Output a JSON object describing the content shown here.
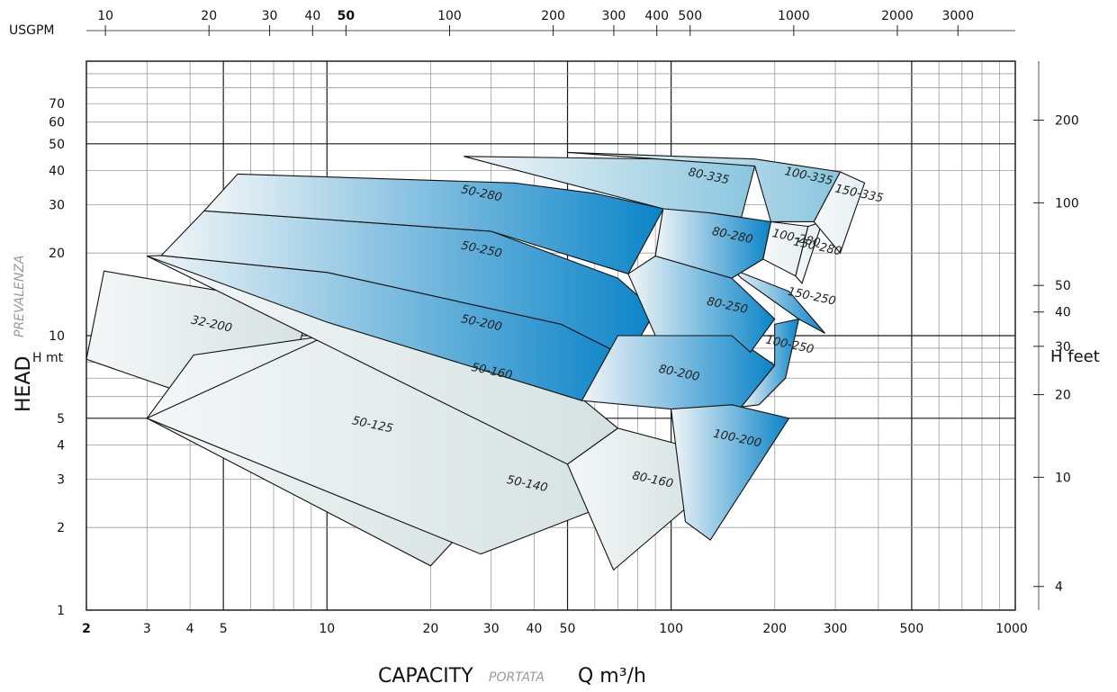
{
  "chart_data": {
    "type": "area",
    "x_scale": "log",
    "y_scale": "log",
    "xlabel": "CAPACITY",
    "xlabel_sub": "PORTATA",
    "xlabel_unit": "Q m³/h",
    "ylabel": "HEAD",
    "ylabel_sub": "PREVALENZA",
    "ylabel_unit": "H mt",
    "y2label": "H feet",
    "top_axis_label": "USGPM",
    "xlim": [
      2,
      1000
    ],
    "ylim": [
      1,
      100
    ],
    "x_ticks": [
      "2",
      "3",
      "4",
      "5",
      "10",
      "20",
      "30",
      "40",
      "50",
      "100",
      "200",
      "300",
      "500",
      "1000"
    ],
    "y_ticks": [
      "1",
      "2",
      "3",
      "4",
      "5",
      "10",
      "20",
      "30",
      "40",
      "50",
      "60",
      "70"
    ],
    "top_ticks": [
      "10",
      "20",
      "30",
      "40",
      "50",
      "100",
      "200",
      "300",
      "400",
      "500",
      "1000",
      "2000",
      "3000"
    ],
    "right_ticks": [
      "4",
      "10",
      "20",
      "30",
      "40",
      "50",
      "100",
      "200"
    ],
    "grid": true,
    "gradient_light": "#f4f7f7",
    "gradient_dark": "#0a84c8",
    "gradient_grey": "#d5e1e1",
    "regions": [
      {
        "label": "32-200",
        "label_x": 4.6,
        "label_y": 10.7,
        "shade": "grey",
        "poly": [
          [
            2.25,
            17.2
          ],
          [
            8.9,
            12.8
          ],
          [
            7.2,
            4.7
          ],
          [
            2,
            8.2
          ]
        ]
      },
      {
        "label": "50-125",
        "label_x": 13.5,
        "label_y": 4.6,
        "shade": "grey",
        "poly": [
          [
            3,
            5
          ],
          [
            4.1,
            8.5
          ],
          [
            10,
            10
          ],
          [
            35,
            3.1
          ],
          [
            20,
            1.45
          ],
          [
            3,
            5
          ]
        ]
      },
      {
        "label": "50-140",
        "label_x": 38,
        "label_y": 2.8,
        "shade": "grey",
        "poly": [
          [
            3,
            5
          ],
          [
            10,
            10
          ],
          [
            50,
            4.5
          ],
          [
            70,
            2.5
          ],
          [
            28,
            1.6
          ],
          [
            3,
            5
          ]
        ]
      },
      {
        "label": "50-160",
        "label_x": 30,
        "label_y": 7.2,
        "shade": "grey",
        "poly": [
          [
            3,
            19.5
          ],
          [
            10,
            12.4
          ],
          [
            50,
            6.5
          ],
          [
            70,
            4.6
          ],
          [
            50,
            3.4
          ],
          [
            3,
            19.5
          ]
        ]
      },
      {
        "label": "80-160",
        "label_x": 88,
        "label_y": 2.9,
        "shade": "grey",
        "poly": [
          [
            50,
            3.4
          ],
          [
            70,
            4.6
          ],
          [
            115,
            3.9
          ],
          [
            130,
            2.8
          ],
          [
            68,
            1.4
          ],
          [
            50,
            3.4
          ]
        ]
      },
      {
        "label": "50-200",
        "label_x": 28,
        "label_y": 10.8,
        "shade": "blue",
        "poly": [
          [
            3.3,
            19.6
          ],
          [
            10,
            17
          ],
          [
            48,
            11
          ],
          [
            75,
            8.3
          ],
          [
            55,
            5.8
          ],
          [
            10,
            11.2
          ],
          [
            3,
            19.5
          ]
        ]
      },
      {
        "label": "50-250",
        "label_x": 28,
        "label_y": 20,
        "shade": "blue",
        "poly": [
          [
            4.4,
            28.5
          ],
          [
            30,
            24
          ],
          [
            70,
            16.2
          ],
          [
            90,
            12.3
          ],
          [
            75,
            8.3
          ],
          [
            48,
            11
          ],
          [
            10,
            17
          ],
          [
            3.3,
            19.6
          ]
        ]
      },
      {
        "label": "50-280",
        "label_x": 28,
        "label_y": 32,
        "shade": "blue",
        "poly": [
          [
            5.5,
            38.8
          ],
          [
            35,
            36
          ],
          [
            60,
            33
          ],
          [
            95,
            29
          ],
          [
            75,
            16.8
          ],
          [
            30,
            24
          ],
          [
            4.4,
            28.5
          ]
        ]
      },
      {
        "label": "80-200",
        "label_x": 105,
        "label_y": 7.1,
        "shade": "blue",
        "poly": [
          [
            70,
            10
          ],
          [
            90,
            10
          ],
          [
            150,
            10
          ],
          [
            200,
            7.8
          ],
          [
            160,
            5.5
          ],
          [
            100,
            5.4
          ],
          [
            55,
            5.8
          ]
        ]
      },
      {
        "label": "80-250",
        "label_x": 145,
        "label_y": 12.5,
        "shade": "blue",
        "poly": [
          [
            90,
            19.5
          ],
          [
            150,
            16.2
          ],
          [
            200,
            11.5
          ],
          [
            170,
            8.7
          ],
          [
            150,
            10
          ],
          [
            90,
            10
          ],
          [
            75,
            16.8
          ]
        ]
      },
      {
        "label": "100-200",
        "label_x": 155,
        "label_y": 4.1,
        "shade": "blue",
        "poly": [
          [
            150,
            5.6
          ],
          [
            220,
            5
          ],
          [
            130,
            1.8
          ],
          [
            110,
            2.1
          ],
          [
            100,
            5.4
          ]
        ]
      },
      {
        "label": "100-250",
        "label_x": 220,
        "label_y": 9,
        "shade": "blue",
        "poly": [
          [
            200,
            11
          ],
          [
            235,
            11.5
          ],
          [
            215,
            7
          ],
          [
            180,
            5.6
          ],
          [
            160,
            5.5
          ],
          [
            200,
            7.8
          ]
        ]
      },
      {
        "label": "150-250",
        "label_x": 255,
        "label_y": 13.5,
        "shade": "blue",
        "poly": [
          [
            150,
            17.5
          ],
          [
            220,
            14.5
          ],
          [
            280,
            10.2
          ],
          [
            235,
            11.5
          ],
          [
            160,
            16.2
          ]
        ]
      },
      {
        "label": "80-280",
        "label_x": 150,
        "label_y": 22.5,
        "shade": "blue",
        "poly": [
          [
            95,
            29.5
          ],
          [
            130,
            28
          ],
          [
            195,
            26
          ],
          [
            185,
            19
          ],
          [
            150,
            16.2
          ],
          [
            90,
            19.5
          ],
          [
            95,
            29.5
          ]
        ]
      },
      {
        "label": "100-280",
        "label_x": 230,
        "label_y": 22,
        "shade": "light",
        "poly": [
          [
            195,
            26
          ],
          [
            250,
            25
          ],
          [
            230,
            16.5
          ],
          [
            185,
            19
          ]
        ]
      },
      {
        "label": "150-280",
        "label_x": 265,
        "label_y": 20.5,
        "shade": "light",
        "poly": [
          [
            250,
            25
          ],
          [
            275,
            26
          ],
          [
            240,
            15.5
          ],
          [
            230,
            16.5
          ]
        ]
      },
      {
        "label": "80-335",
        "label_x": 128,
        "label_y": 37,
        "shade": "lightblue",
        "poly": [
          [
            25,
            45
          ],
          [
            95,
            44
          ],
          [
            175,
            41.5
          ],
          [
            160,
            27
          ],
          [
            130,
            28
          ],
          [
            95,
            29
          ]
        ]
      },
      {
        "label": "100-335",
        "label_x": 250,
        "label_y": 37,
        "shade": "lightblue",
        "poly": [
          [
            50,
            46.5
          ],
          [
            175,
            44
          ],
          [
            310,
            39.5
          ],
          [
            260,
            26
          ],
          [
            195,
            26
          ],
          [
            175,
            41.5
          ]
        ]
      },
      {
        "label": "150-335",
        "label_x": 350,
        "label_y": 32,
        "shade": "light",
        "poly": [
          [
            310,
            39.5
          ],
          [
            365,
            36
          ],
          [
            310,
            20
          ],
          [
            260,
            26
          ]
        ]
      }
    ]
  }
}
